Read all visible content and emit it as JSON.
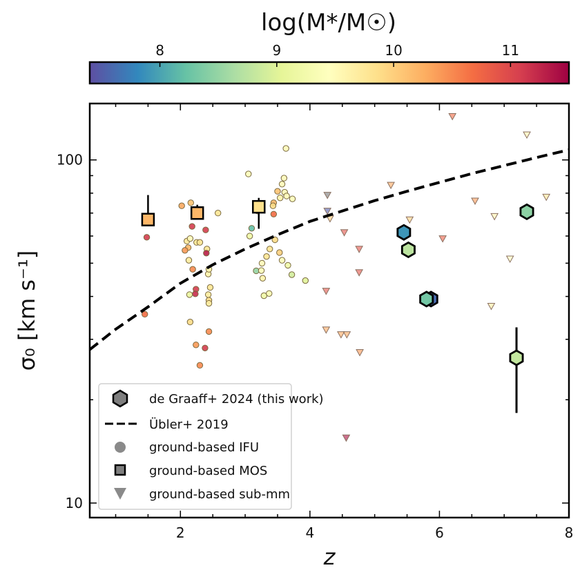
{
  "chart_data": {
    "type": "scatter",
    "xlabel": "z",
    "ylabel": "σ₀ [km s⁻¹]",
    "xlim": [
      0.6,
      8.0
    ],
    "ylim": [
      9.07,
      146
    ],
    "yscale": "log",
    "x_ticks": [
      2,
      4,
      6,
      8
    ],
    "x_tick_labels": [
      "2",
      "4",
      "6",
      "8"
    ],
    "y_ticks": [
      10,
      100
    ],
    "y_tick_labels": [
      "10",
      "100"
    ],
    "colorbar": {
      "label": "log(M*/M☉)",
      "range": [
        7.4,
        11.5
      ],
      "ticks": [
        8,
        9,
        10,
        11
      ],
      "tick_labels": [
        "8",
        "9",
        "10",
        "11"
      ],
      "colormap": "Spectral_r",
      "placement": "top"
    },
    "legend": {
      "placement": "bottom-left",
      "entries": [
        {
          "label": "de Graaff+ 2024 (this work)",
          "marker": "hexagon"
        },
        {
          "label": "Übler+ 2019",
          "marker": "dashed-line"
        },
        {
          "label": "ground-based IFU",
          "marker": "circle"
        },
        {
          "label": "ground-based MOS",
          "marker": "square"
        },
        {
          "label": "ground-based sub-mm",
          "marker": "triangle-down"
        }
      ]
    },
    "series": [
      {
        "name": "de Graaff+ 2024 (this work)",
        "marker": "hexagon",
        "points": [
          {
            "z": 5.45,
            "sigma": 61.5,
            "logM": 7.9
          },
          {
            "z": 5.52,
            "sigma": 54.7,
            "logM": 8.75
          },
          {
            "z": 5.87,
            "sigma": 39.3,
            "logM": 7.6
          },
          {
            "z": 5.8,
            "sigma": 39.3,
            "logM": 8.3
          },
          {
            "z": 7.35,
            "sigma": 70.6,
            "logM": 8.45
          },
          {
            "z": 7.19,
            "sigma": 26.5,
            "logM": 8.8,
            "err_low": 18.3,
            "err_high": 32.5
          }
        ]
      },
      {
        "name": "Übler+ 2019",
        "type": "line",
        "style": "dashed",
        "x": [
          0.6,
          1.0,
          1.5,
          2.0,
          2.5,
          3.0,
          3.5,
          4.0,
          4.5,
          5.0,
          5.5,
          6.0,
          6.5,
          7.0,
          7.5,
          8.0
        ],
        "y": [
          28.0,
          32.1,
          37.3,
          43.7,
          49.5,
          55.0,
          60.5,
          66.2,
          71.0,
          76.1,
          81.0,
          86.0,
          91.2,
          96.3,
          101.6,
          107.0
        ]
      },
      {
        "name": "ground-based MOS",
        "marker": "square",
        "points": [
          {
            "z": 1.5,
            "sigma": 67.0,
            "logM": 10.2,
            "err_low": 67.0,
            "err_high": 79.0
          },
          {
            "z": 2.26,
            "sigma": 70.0,
            "logM": 10.2,
            "err_low": 68.0,
            "err_high": 74.0
          },
          {
            "z": 3.21,
            "sigma": 73.0,
            "logM": 9.85,
            "err_low": 63.0,
            "err_high": 77.5
          }
        ]
      },
      {
        "name": "ground-based IFU",
        "marker": "circle",
        "points": [
          {
            "z": 1.48,
            "sigma": 59.5,
            "logM": 11.1
          },
          {
            "z": 1.45,
            "sigma": 35.5,
            "logM": 10.7
          },
          {
            "z": 2.02,
            "sigma": 73.5,
            "logM": 10.3
          },
          {
            "z": 2.16,
            "sigma": 75.0,
            "logM": 10.1
          },
          {
            "z": 2.58,
            "sigma": 70.0,
            "logM": 9.8
          },
          {
            "z": 2.18,
            "sigma": 64.0,
            "logM": 11.1
          },
          {
            "z": 2.39,
            "sigma": 62.5,
            "logM": 11.1
          },
          {
            "z": 2.1,
            "sigma": 58.0,
            "logM": 9.75
          },
          {
            "z": 2.15,
            "sigma": 59.0,
            "logM": 9.5
          },
          {
            "z": 2.25,
            "sigma": 57.5,
            "logM": 9.8
          },
          {
            "z": 2.3,
            "sigma": 57.5,
            "logM": 9.8
          },
          {
            "z": 2.12,
            "sigma": 55.5,
            "logM": 10.2
          },
          {
            "z": 2.07,
            "sigma": 54.5,
            "logM": 10.4
          },
          {
            "z": 2.41,
            "sigma": 55.0,
            "logM": 9.8
          },
          {
            "z": 2.4,
            "sigma": 53.5,
            "logM": 11.3
          },
          {
            "z": 2.13,
            "sigma": 51.0,
            "logM": 9.7
          },
          {
            "z": 2.19,
            "sigma": 48.0,
            "logM": 10.5
          },
          {
            "z": 2.43,
            "sigma": 46.5,
            "logM": 9.6
          },
          {
            "z": 2.44,
            "sigma": 48.0,
            "logM": 9.6
          },
          {
            "z": 2.24,
            "sigma": 42.0,
            "logM": 11.1
          },
          {
            "z": 2.23,
            "sigma": 40.7,
            "logM": 11.2
          },
          {
            "z": 2.14,
            "sigma": 40.5,
            "logM": 9.1
          },
          {
            "z": 2.46,
            "sigma": 42.5,
            "logM": 9.8
          },
          {
            "z": 2.43,
            "sigma": 40.5,
            "logM": 9.7
          },
          {
            "z": 2.44,
            "sigma": 39.0,
            "logM": 9.9
          },
          {
            "z": 2.44,
            "sigma": 38.2,
            "logM": 9.7
          },
          {
            "z": 2.15,
            "sigma": 33.7,
            "logM": 9.9
          },
          {
            "z": 2.44,
            "sigma": 31.6,
            "logM": 10.5
          },
          {
            "z": 2.24,
            "sigma": 28.9,
            "logM": 10.4
          },
          {
            "z": 2.38,
            "sigma": 28.3,
            "logM": 11.1
          },
          {
            "z": 2.3,
            "sigma": 25.2,
            "logM": 10.5
          },
          {
            "z": 3.05,
            "sigma": 91.0,
            "logM": 9.4
          },
          {
            "z": 3.63,
            "sigma": 108.0,
            "logM": 9.5
          },
          {
            "z": 3.6,
            "sigma": 88.5,
            "logM": 9.5
          },
          {
            "z": 3.57,
            "sigma": 85.0,
            "logM": 9.5
          },
          {
            "z": 3.5,
            "sigma": 81.0,
            "logM": 10.1
          },
          {
            "z": 3.61,
            "sigma": 80.5,
            "logM": 9.5
          },
          {
            "z": 3.64,
            "sigma": 78.5,
            "logM": 9.5
          },
          {
            "z": 3.73,
            "sigma": 77.0,
            "logM": 9.4
          },
          {
            "z": 3.54,
            "sigma": 77.5,
            "logM": 9.6
          },
          {
            "z": 3.44,
            "sigma": 75.0,
            "logM": 10.2
          },
          {
            "z": 3.43,
            "sigma": 73.5,
            "logM": 9.9
          },
          {
            "z": 3.19,
            "sigma": 71.0,
            "logM": 9.85
          },
          {
            "z": 3.44,
            "sigma": 69.5,
            "logM": 10.7
          },
          {
            "z": 3.1,
            "sigma": 63.2,
            "logM": 8.2
          },
          {
            "z": 3.07,
            "sigma": 60.0,
            "logM": 9.2
          },
          {
            "z": 3.46,
            "sigma": 58.5,
            "logM": 9.9
          },
          {
            "z": 3.38,
            "sigma": 55.0,
            "logM": 9.8
          },
          {
            "z": 3.53,
            "sigma": 53.7,
            "logM": 10.0
          },
          {
            "z": 3.57,
            "sigma": 51.0,
            "logM": 9.4
          },
          {
            "z": 3.33,
            "sigma": 52.3,
            "logM": 9.8
          },
          {
            "z": 3.66,
            "sigma": 49.3,
            "logM": 9.2
          },
          {
            "z": 3.26,
            "sigma": 50.0,
            "logM": 9.5
          },
          {
            "z": 3.17,
            "sigma": 47.5,
            "logM": 8.5
          },
          {
            "z": 3.25,
            "sigma": 47.6,
            "logM": 9.4
          },
          {
            "z": 3.72,
            "sigma": 46.3,
            "logM": 8.9
          },
          {
            "z": 3.27,
            "sigma": 45.2,
            "logM": 9.6
          },
          {
            "z": 3.93,
            "sigma": 44.5,
            "logM": 9.0
          },
          {
            "z": 3.29,
            "sigma": 40.2,
            "logM": 9.2
          },
          {
            "z": 3.37,
            "sigma": 40.8,
            "logM": 9.3
          }
        ]
      },
      {
        "name": "ground-based sub-mm",
        "marker": "triangle-down",
        "points": [
          {
            "z": 6.2,
            "sigma": 134.0,
            "logM": 10.7
          },
          {
            "z": 7.35,
            "sigma": 118.5,
            "logM": 9.6
          },
          {
            "z": 5.25,
            "sigma": 84.5,
            "logM": 10.3
          },
          {
            "z": 4.27,
            "sigma": 79.0,
            "logM": null
          },
          {
            "z": 6.55,
            "sigma": 76.0,
            "logM": 10.4
          },
          {
            "z": 7.65,
            "sigma": 78.0,
            "logM": 9.8
          },
          {
            "z": 4.27,
            "sigma": 71.0,
            "logM": 7.5
          },
          {
            "z": 4.31,
            "sigma": 67.5,
            "logM": 10.0
          },
          {
            "z": 6.85,
            "sigma": 68.5,
            "logM": 9.6
          },
          {
            "z": 5.54,
            "sigma": 67.0,
            "logM": 10.0
          },
          {
            "z": 4.53,
            "sigma": 61.5,
            "logM": 10.9
          },
          {
            "z": 6.05,
            "sigma": 59.0,
            "logM": 10.8
          },
          {
            "z": 4.76,
            "sigma": 55.0,
            "logM": 10.9
          },
          {
            "z": 7.09,
            "sigma": 51.5,
            "logM": 9.4
          },
          {
            "z": 4.76,
            "sigma": 47.0,
            "logM": 10.9
          },
          {
            "z": 4.25,
            "sigma": 41.5,
            "logM": 10.9
          },
          {
            "z": 6.8,
            "sigma": 37.5,
            "logM": 9.7
          },
          {
            "z": 4.25,
            "sigma": 32.0,
            "logM": 10.3
          },
          {
            "z": 4.48,
            "sigma": 31.0,
            "logM": 10.3
          },
          {
            "z": 4.57,
            "sigma": 31.0,
            "logM": 10.3
          },
          {
            "z": 4.77,
            "sigma": 27.5,
            "logM": 10.4
          },
          {
            "z": 4.56,
            "sigma": 15.5,
            "logM": 11.4
          }
        ]
      }
    ]
  }
}
